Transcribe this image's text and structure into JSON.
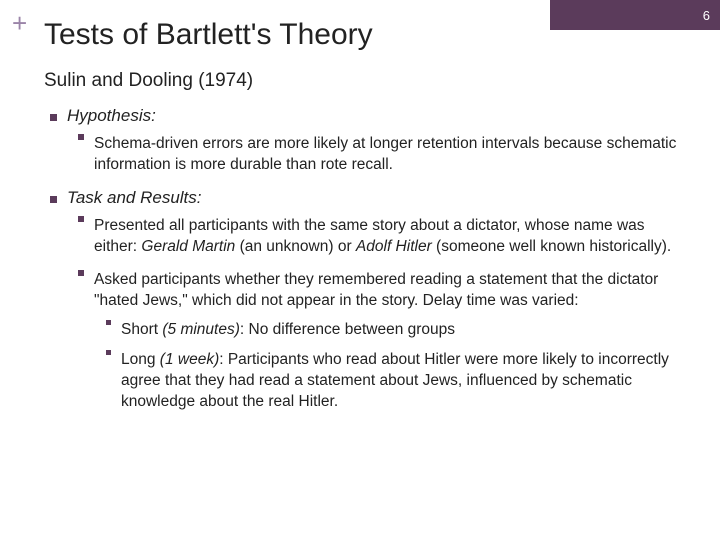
{
  "slideNumber": "6",
  "cornerBarWidth": 170,
  "plusSymbol": "+",
  "title": "Tests of Bartlett's Theory",
  "subtitle": "Sulin and Dooling (1974)",
  "hypothesis": {
    "heading": "Hypothesis:",
    "body": "Schema-driven errors are more likely at longer retention intervals because schematic information is more durable than rote recall."
  },
  "task": {
    "heading": "Task and Results:",
    "item1_pre": "Presented all participants with the same story about a dictator, whose name was either: ",
    "item1_g": "Gerald Martin",
    "item1_mid1": " (an unknown) or ",
    "item1_a": "Adolf Hitler",
    "item1_post": " (someone well known historically).",
    "item2": "Asked participants whether they remembered reading a statement that the dictator \"hated Jews,\" which did not appear in the story. Delay time was varied:",
    "short_label": "Short ",
    "short_time": "(5 minutes)",
    "short_rest": ": No difference between groups",
    "long_label": "Long ",
    "long_time": "(1 week)",
    "long_rest": ": Participants who read about Hitler were more likely to incorrectly agree that they had read a statement about Jews, influenced by schematic knowledge about the real Hitler."
  },
  "colors": {
    "accent": "#5b3b5b",
    "plus": "#9a84a8"
  }
}
